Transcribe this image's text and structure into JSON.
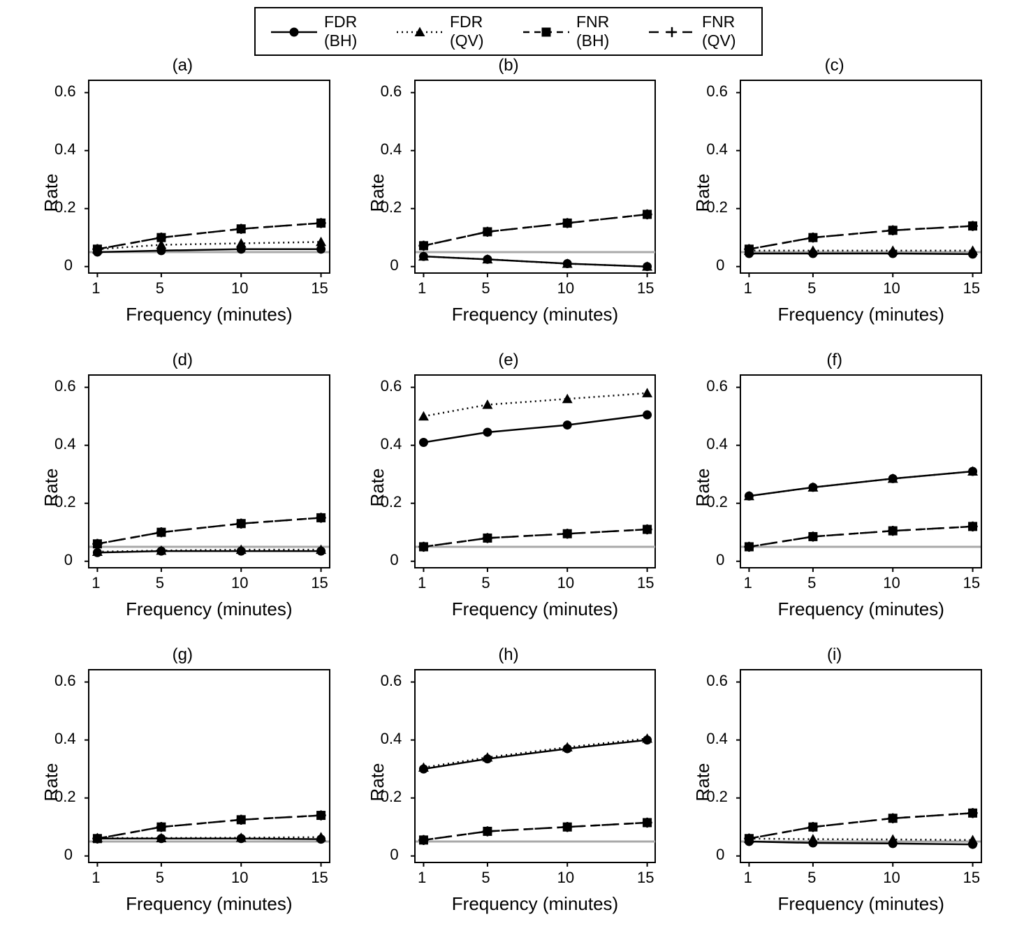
{
  "colors": {
    "bg": "#ffffff",
    "axis": "#000000",
    "series_black": "#000000",
    "ref_line": "#a9a9a9"
  },
  "fonts": {
    "axis_label_pt": 26,
    "tick_pt": 22,
    "title_pt": 24,
    "legend_pt": 23
  },
  "x": {
    "ticks": [
      1,
      5,
      10,
      15
    ],
    "lim": [
      0.5,
      15.5
    ],
    "label": "Frequency (minutes)"
  },
  "y": {
    "ticks": [
      0,
      0.2,
      0.4,
      0.6
    ],
    "lim": [
      -0.02,
      0.64
    ],
    "label": "Rate"
  },
  "ref_line_y": 0.05,
  "legend": [
    {
      "label": "FDR (BH)",
      "style": "solid",
      "marker": "circle"
    },
    {
      "label": "FDR (QV)",
      "style": "dotted",
      "marker": "triangle"
    },
    {
      "label": "FNR (BH)",
      "style": "dashed",
      "marker": "square"
    },
    {
      "label": "FNR (QV)",
      "style": "longdash",
      "marker": "plus"
    }
  ],
  "marker_size": 6.5,
  "line_width": 2.5,
  "ref_line_width": 3,
  "panels": [
    {
      "title": "(a)",
      "series": {
        "fdr_bh": [
          0.05,
          0.055,
          0.06,
          0.06
        ],
        "fdr_qv": [
          0.06,
          0.075,
          0.08,
          0.085
        ],
        "fnr_bh": [
          0.06,
          0.1,
          0.13,
          0.15
        ],
        "fnr_qv": [
          0.06,
          0.1,
          0.13,
          0.15
        ]
      }
    },
    {
      "title": "(b)",
      "series": {
        "fdr_bh": [
          0.035,
          0.025,
          0.01,
          0.0
        ],
        "fdr_qv": [
          0.035,
          0.025,
          0.01,
          0.0
        ],
        "fnr_bh": [
          0.072,
          0.12,
          0.15,
          0.18
        ],
        "fnr_qv": [
          0.072,
          0.12,
          0.15,
          0.18
        ]
      }
    },
    {
      "title": "(c)",
      "series": {
        "fdr_bh": [
          0.045,
          0.045,
          0.045,
          0.043
        ],
        "fdr_qv": [
          0.055,
          0.055,
          0.055,
          0.055
        ],
        "fnr_bh": [
          0.06,
          0.1,
          0.125,
          0.14
        ],
        "fnr_qv": [
          0.06,
          0.1,
          0.125,
          0.14
        ]
      }
    },
    {
      "title": "(d)",
      "series": {
        "fdr_bh": [
          0.03,
          0.035,
          0.035,
          0.035
        ],
        "fdr_qv": [
          0.033,
          0.037,
          0.04,
          0.04
        ],
        "fnr_bh": [
          0.06,
          0.1,
          0.13,
          0.15
        ],
        "fnr_qv": [
          0.06,
          0.1,
          0.13,
          0.15
        ]
      }
    },
    {
      "title": "(e)",
      "series": {
        "fdr_bh": [
          0.41,
          0.445,
          0.47,
          0.505
        ],
        "fdr_qv": [
          0.5,
          0.54,
          0.56,
          0.58
        ],
        "fnr_bh": [
          0.05,
          0.08,
          0.095,
          0.11
        ],
        "fnr_qv": [
          0.05,
          0.08,
          0.095,
          0.11
        ]
      }
    },
    {
      "title": "(f)",
      "series": {
        "fdr_bh": [
          0.225,
          0.255,
          0.285,
          0.31
        ],
        "fdr_qv": [
          0.225,
          0.255,
          0.285,
          0.31
        ],
        "fnr_bh": [
          0.05,
          0.085,
          0.105,
          0.12
        ],
        "fnr_qv": [
          0.05,
          0.085,
          0.105,
          0.12
        ]
      }
    },
    {
      "title": "(g)",
      "series": {
        "fdr_bh": [
          0.06,
          0.06,
          0.06,
          0.058
        ],
        "fdr_qv": [
          0.062,
          0.062,
          0.063,
          0.065
        ],
        "fnr_bh": [
          0.06,
          0.1,
          0.125,
          0.14
        ],
        "fnr_qv": [
          0.06,
          0.1,
          0.125,
          0.14
        ]
      }
    },
    {
      "title": "(h)",
      "series": {
        "fdr_bh": [
          0.3,
          0.335,
          0.37,
          0.4
        ],
        "fdr_qv": [
          0.305,
          0.34,
          0.375,
          0.405
        ],
        "fnr_bh": [
          0.055,
          0.085,
          0.1,
          0.115
        ],
        "fnr_qv": [
          0.055,
          0.085,
          0.1,
          0.115
        ]
      }
    },
    {
      "title": "(i)",
      "series": {
        "fdr_bh": [
          0.05,
          0.045,
          0.043,
          0.04
        ],
        "fdr_qv": [
          0.06,
          0.058,
          0.057,
          0.055
        ],
        "fnr_bh": [
          0.06,
          0.1,
          0.13,
          0.148
        ],
        "fnr_qv": [
          0.06,
          0.1,
          0.13,
          0.148
        ]
      }
    }
  ],
  "dash": {
    "solid": "",
    "dotted": "2 5",
    "dashed": "9 7",
    "longdash": "14 10"
  },
  "series_style": {
    "fdr_bh": {
      "dash": "solid",
      "marker": "circle"
    },
    "fdr_qv": {
      "dash": "dotted",
      "marker": "triangle"
    },
    "fnr_bh": {
      "dash": "dashed",
      "marker": "square"
    },
    "fnr_qv": {
      "dash": "longdash",
      "marker": "plus"
    }
  }
}
